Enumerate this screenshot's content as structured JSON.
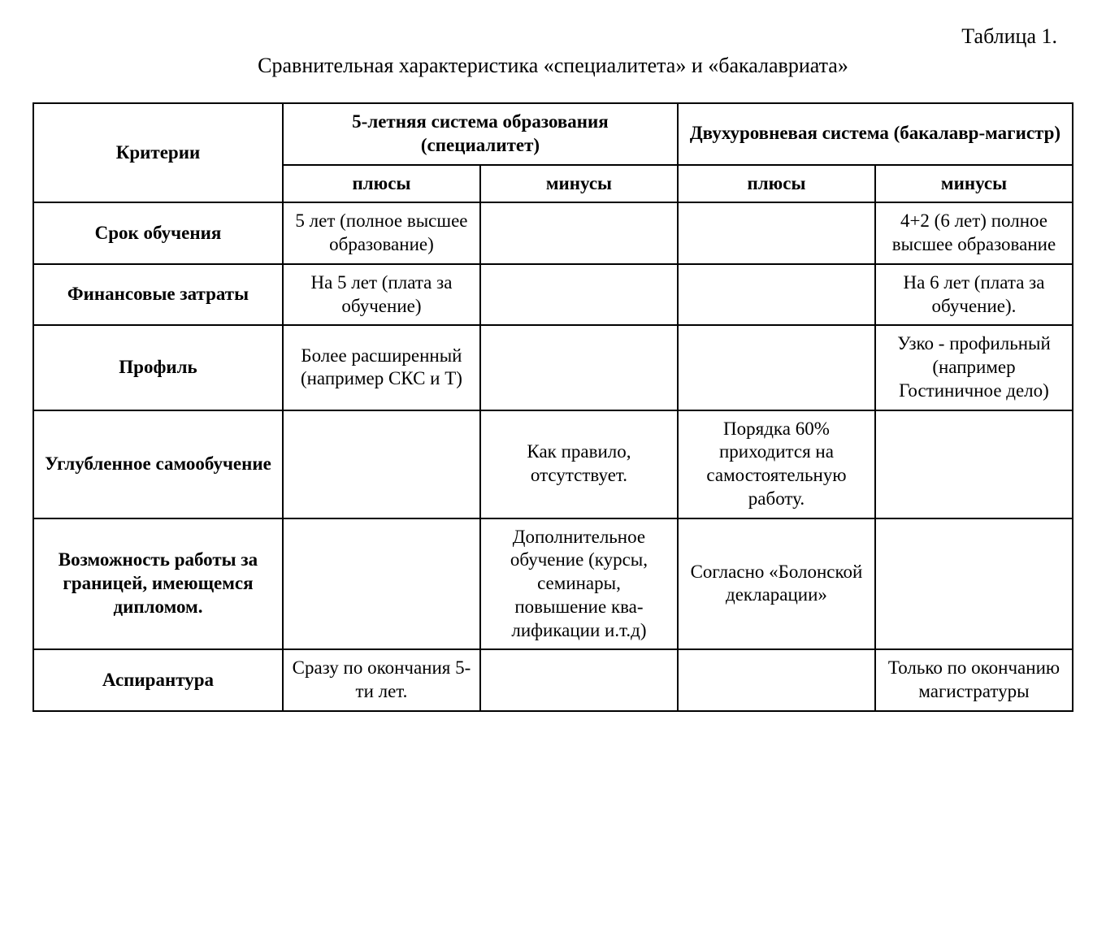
{
  "header": {
    "table_label": "Таблица 1.",
    "title": "Сравнительная характеристика «специалитета» и «бакалавриата»"
  },
  "table": {
    "columns": {
      "criteria": "Критерии",
      "system1": "5-летняя система образования (специалитет)",
      "system2": "Двухуровневая  система (бакалавр-магистр)",
      "plus": "плюсы",
      "minus": "минусы"
    },
    "rows": [
      {
        "criteria": "Срок обучения",
        "s1_plus": "5 лет (полное высшее образование)",
        "s1_minus": "",
        "s2_plus": "",
        "s2_minus": "4+2 (6  лет) полное высшее образование"
      },
      {
        "criteria": "Финансовые затраты",
        "s1_plus": "На 5 лет (плата за обучение)",
        "s1_minus": "",
        "s2_plus": "",
        "s2_minus": "На 6 лет (пла­та за обуче­ние)."
      },
      {
        "criteria": "Профиль",
        "s1_plus": "Более расши­ренный (напри­мер СКС и Т)",
        "s1_minus": "",
        "s2_plus": "",
        "s2_minus": "Узко - профильный (например Гостиничное дело)"
      },
      {
        "criteria": "Углубленное самообучение",
        "s1_plus": "",
        "s1_minus": "Как правило, отсутствует.",
        "s2_plus": "Порядка 60% приходится на самостоятель­ную работу.",
        "s2_minus": ""
      },
      {
        "criteria": "Возможность работы за границей, имеющемся дипломом.",
        "s1_plus": "",
        "s1_minus": "Дополнительное обучение (кур­сы, семинары, повышение ква­лификации и.т.д)",
        "s2_plus": "Согласно «Болонской декларации»",
        "s2_minus": ""
      },
      {
        "criteria": "Аспирантура",
        "s1_plus": "Сразу по окон­чания 5-ти лет.",
        "s1_minus": "",
        "s2_plus": "",
        "s2_minus": "Только по окончанию магистратуры"
      }
    ],
    "style": {
      "border_color": "#000000",
      "border_width": 2,
      "background_color": "#ffffff",
      "text_color": "#000000",
      "header_font_weight": "bold",
      "cell_fontsize": 23,
      "title_fontsize": 26,
      "font_family": "Times New Roman"
    }
  }
}
